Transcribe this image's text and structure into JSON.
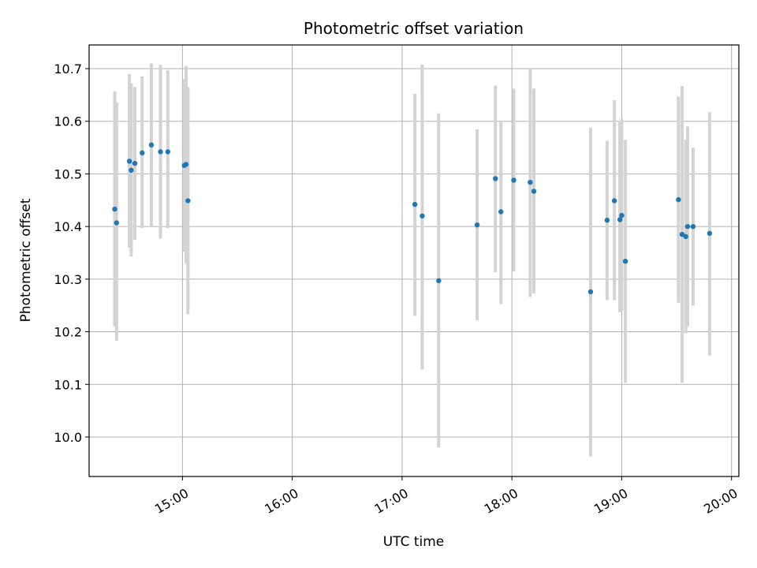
{
  "chart_data": {
    "type": "scatter",
    "title": "Photometric offset variation",
    "xlabel": "UTC time",
    "ylabel": "Photometric offset",
    "x_ticks": [
      "15:00",
      "16:00",
      "17:00",
      "18:00",
      "19:00",
      "20:00"
    ],
    "y_ticks": [
      "10.0",
      "10.1",
      "10.2",
      "10.3",
      "10.4",
      "10.5",
      "10.6",
      "10.7"
    ],
    "xlim": [
      "14:09",
      "20:04"
    ],
    "ylim": [
      9.925,
      10.745
    ],
    "grid": true,
    "point_color": "#1f77b4",
    "errorbar_color": "#d3d3d3",
    "points": [
      {
        "t": "14:23",
        "y": 10.433,
        "lo": 10.21,
        "hi": 10.657
      },
      {
        "t": "14:24",
        "y": 10.407,
        "lo": 10.183,
        "hi": 10.636
      },
      {
        "t": "14:31",
        "y": 10.524,
        "lo": 10.36,
        "hi": 10.69
      },
      {
        "t": "14:32",
        "y": 10.507,
        "lo": 10.343,
        "hi": 10.672
      },
      {
        "t": "14:34",
        "y": 10.52,
        "lo": 10.375,
        "hi": 10.665
      },
      {
        "t": "14:38",
        "y": 10.54,
        "lo": 10.397,
        "hi": 10.685
      },
      {
        "t": "14:43",
        "y": 10.555,
        "lo": 10.4,
        "hi": 10.71
      },
      {
        "t": "14:48",
        "y": 10.542,
        "lo": 10.377,
        "hi": 10.707
      },
      {
        "t": "14:52",
        "y": 10.542,
        "lo": 10.397,
        "hi": 10.697
      },
      {
        "t": "15:01",
        "y": 10.516,
        "lo": 10.352,
        "hi": 10.68
      },
      {
        "t": "15:02",
        "y": 10.518,
        "lo": 10.33,
        "hi": 10.705
      },
      {
        "t": "15:03",
        "y": 10.449,
        "lo": 10.233,
        "hi": 10.665
      },
      {
        "t": "17:07",
        "y": 10.442,
        "lo": 10.23,
        "hi": 10.652
      },
      {
        "t": "17:11",
        "y": 10.42,
        "lo": 10.128,
        "hi": 10.708
      },
      {
        "t": "17:20",
        "y": 10.297,
        "lo": 9.98,
        "hi": 10.615
      },
      {
        "t": "17:41",
        "y": 10.403,
        "lo": 10.222,
        "hi": 10.585
      },
      {
        "t": "17:51",
        "y": 10.491,
        "lo": 10.313,
        "hi": 10.668
      },
      {
        "t": "17:54",
        "y": 10.428,
        "lo": 10.253,
        "hi": 10.6
      },
      {
        "t": "18:01",
        "y": 10.488,
        "lo": 10.315,
        "hi": 10.662
      },
      {
        "t": "18:10",
        "y": 10.484,
        "lo": 10.266,
        "hi": 10.7
      },
      {
        "t": "18:12",
        "y": 10.467,
        "lo": 10.273,
        "hi": 10.662
      },
      {
        "t": "18:43",
        "y": 10.276,
        "lo": 9.963,
        "hi": 10.588
      },
      {
        "t": "18:52",
        "y": 10.412,
        "lo": 10.26,
        "hi": 10.563
      },
      {
        "t": "18:56",
        "y": 10.449,
        "lo": 10.26,
        "hi": 10.64
      },
      {
        "t": "18:59",
        "y": 10.413,
        "lo": 10.237,
        "hi": 10.6
      },
      {
        "t": "19:00",
        "y": 10.421,
        "lo": 10.24,
        "hi": 10.605
      },
      {
        "t": "19:02",
        "y": 10.334,
        "lo": 10.103,
        "hi": 10.565
      },
      {
        "t": "19:31",
        "y": 10.451,
        "lo": 10.255,
        "hi": 10.647
      },
      {
        "t": "19:33",
        "y": 10.385,
        "lo": 10.103,
        "hi": 10.667
      },
      {
        "t": "19:35",
        "y": 10.381,
        "lo": 10.197,
        "hi": 10.565
      },
      {
        "t": "19:36",
        "y": 10.4,
        "lo": 10.21,
        "hi": 10.59
      },
      {
        "t": "19:39",
        "y": 10.4,
        "lo": 10.25,
        "hi": 10.55
      },
      {
        "t": "19:48",
        "y": 10.387,
        "lo": 10.155,
        "hi": 10.617
      }
    ]
  }
}
